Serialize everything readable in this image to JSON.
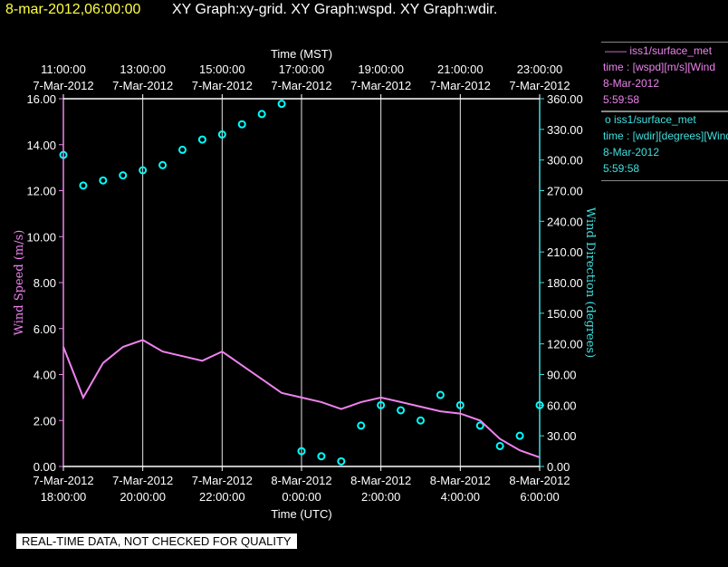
{
  "header": {
    "date_label": "8-mar-2012,06:00:00",
    "graphs_label": "XY Graph:xy-grid.  XY Graph:wspd.  XY Graph:wdir."
  },
  "notice": "REAL-TIME DATA, NOT CHECKED FOR QUALITY",
  "legend": [
    {
      "marker": "——",
      "name": "iss1/surface_met",
      "line2": "time : [wspd][m/s][Wind",
      "line3": "8-Mar-2012",
      "line4": "5:59:58",
      "color": "#ee82ee"
    },
    {
      "marker": "o",
      "name": "iss1/surface_met",
      "line2": "time : [wdir][degrees][Wind",
      "line3": "8-Mar-2012",
      "line4": "5:59:58",
      "color": "#40e0e0"
    }
  ],
  "chart_data": {
    "type": "scatter",
    "colors": {
      "wspd": "#ee82ee",
      "wdir": "#00ffff",
      "axis_left": "#ee82ee",
      "axis_right": "#40e0e0",
      "grid": "#ffffff"
    },
    "x_top": {
      "label": "Time (MST)",
      "ticks": [
        {
          "t": "11:00:00",
          "d": "7-Mar-2012"
        },
        {
          "t": "13:00:00",
          "d": "7-Mar-2012"
        },
        {
          "t": "15:00:00",
          "d": "7-Mar-2012"
        },
        {
          "t": "17:00:00",
          "d": "7-Mar-2012"
        },
        {
          "t": "19:00:00",
          "d": "7-Mar-2012"
        },
        {
          "t": "21:00:00",
          "d": "7-Mar-2012"
        },
        {
          "t": "23:00:00",
          "d": "7-Mar-2012"
        }
      ]
    },
    "x_bottom": {
      "label": "Time (UTC)",
      "range": [
        "2012-03-07 18:00",
        "2012-03-08 06:00"
      ],
      "ticks": [
        {
          "d": "7-Mar-2012",
          "t": "18:00:00"
        },
        {
          "d": "7-Mar-2012",
          "t": "20:00:00"
        },
        {
          "d": "7-Mar-2012",
          "t": "22:00:00"
        },
        {
          "d": "8-Mar-2012",
          "t": "0:00:00"
        },
        {
          "d": "8-Mar-2012",
          "t": "2:00:00"
        },
        {
          "d": "8-Mar-2012",
          "t": "4:00:00"
        },
        {
          "d": "8-Mar-2012",
          "t": "6:00:00"
        }
      ]
    },
    "y_left": {
      "label": "Wind Speed (m/s)",
      "range": [
        0,
        16
      ],
      "ticks": [
        "0.00",
        "2.00",
        "4.00",
        "6.00",
        "8.00",
        "10.00",
        "12.00",
        "14.00",
        "16.00"
      ]
    },
    "y_right": {
      "label": "Wind Direction (degrees)",
      "range": [
        0,
        360
      ],
      "ticks": [
        "0.00",
        "30.00",
        "60.00",
        "90.00",
        "120.00",
        "150.00",
        "180.00",
        "210.00",
        "240.00",
        "270.00",
        "300.00",
        "330.00",
        "360.00"
      ]
    },
    "grid": true,
    "series": [
      {
        "name": "iss1/surface_met wspd",
        "axis": "left",
        "style": "line",
        "x": [
          "2012-03-07 18:00",
          "2012-03-07 18:30",
          "2012-03-07 19:00",
          "2012-03-07 19:30",
          "2012-03-07 20:00",
          "2012-03-07 20:30",
          "2012-03-07 21:00",
          "2012-03-07 21:30",
          "2012-03-07 22:00",
          "2012-03-07 22:30",
          "2012-03-07 23:00",
          "2012-03-07 23:30",
          "2012-03-08 00:00",
          "2012-03-08 00:30",
          "2012-03-08 01:00",
          "2012-03-08 01:30",
          "2012-03-08 02:00",
          "2012-03-08 02:30",
          "2012-03-08 03:00",
          "2012-03-08 03:30",
          "2012-03-08 04:00",
          "2012-03-08 04:30",
          "2012-03-08 05:00",
          "2012-03-08 05:30",
          "2012-03-08 06:00"
        ],
        "y": [
          5.2,
          3.0,
          4.5,
          5.2,
          5.5,
          5.0,
          4.8,
          4.6,
          5.0,
          4.4,
          3.8,
          3.2,
          3.0,
          2.8,
          2.5,
          2.8,
          3.0,
          2.8,
          2.6,
          2.4,
          2.3,
          2.0,
          1.2,
          0.7,
          0.4
        ]
      },
      {
        "name": "iss1/surface_met wdir",
        "axis": "right",
        "style": "points",
        "x": [
          "2012-03-07 18:00",
          "2012-03-07 18:30",
          "2012-03-07 19:00",
          "2012-03-07 19:30",
          "2012-03-07 20:00",
          "2012-03-07 20:30",
          "2012-03-07 21:00",
          "2012-03-07 21:30",
          "2012-03-07 22:00",
          "2012-03-07 22:30",
          "2012-03-07 23:00",
          "2012-03-07 23:30",
          "2012-03-08 00:00",
          "2012-03-08 00:30",
          "2012-03-08 01:00",
          "2012-03-08 01:30",
          "2012-03-08 02:00",
          "2012-03-08 02:30",
          "2012-03-08 03:00",
          "2012-03-08 03:30",
          "2012-03-08 04:00",
          "2012-03-08 04:30",
          "2012-03-08 05:00",
          "2012-03-08 05:30",
          "2012-03-08 06:00"
        ],
        "y": [
          305,
          275,
          280,
          285,
          290,
          295,
          310,
          320,
          325,
          335,
          345,
          355,
          15,
          10,
          5,
          40,
          60,
          55,
          45,
          70,
          60,
          40,
          20,
          30,
          60
        ]
      }
    ]
  }
}
